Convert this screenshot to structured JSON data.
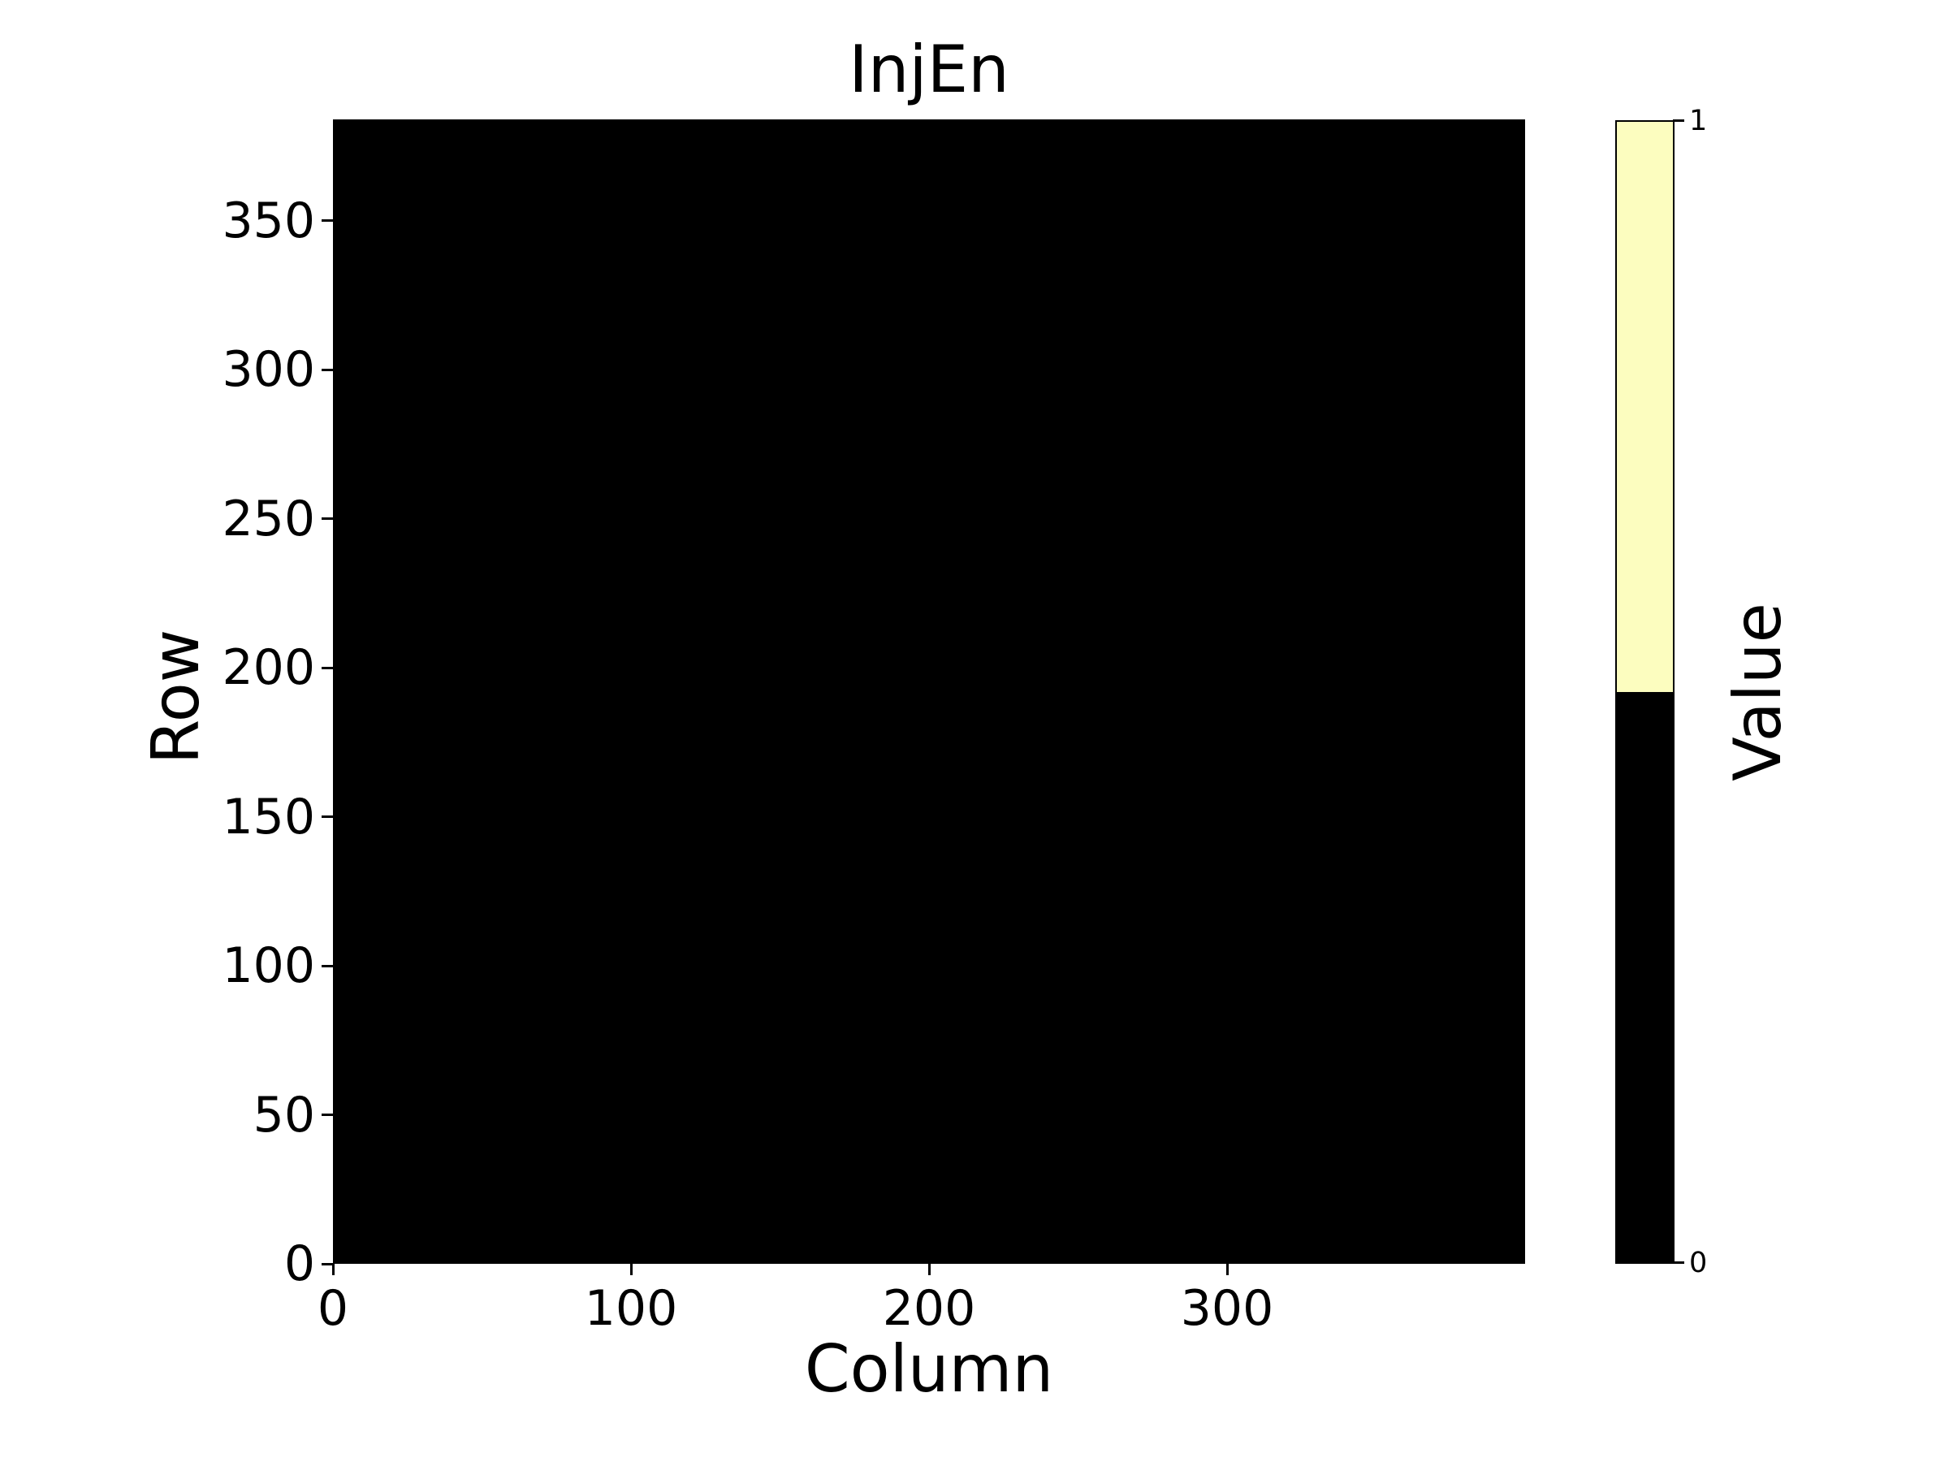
{
  "chart_data": {
    "type": "heatmap",
    "title": "InjEn",
    "xlabel": "Column",
    "ylabel": "Row",
    "xlim": [
      0,
      400
    ],
    "ylim": [
      0,
      384
    ],
    "x_ticks": [
      0,
      100,
      200,
      300
    ],
    "y_ticks": [
      0,
      50,
      100,
      150,
      200,
      250,
      300,
      350
    ],
    "grid": false,
    "matrix": {
      "rows": 384,
      "cols": 400,
      "uniform_value": 0
    },
    "value_colors": {
      "0": "#000000",
      "1": "#fcfdbf"
    },
    "colorbar": {
      "label": "Value",
      "tick_top": "1",
      "tick_bottom": "0",
      "top_color": "#fcfdbf",
      "bottom_color": "#000000"
    }
  }
}
